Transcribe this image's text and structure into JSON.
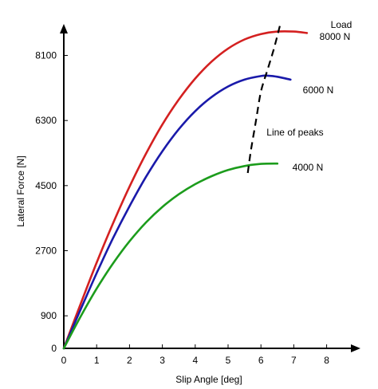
{
  "chart_data": {
    "type": "line",
    "xlabel": "Slip Angle [deg]",
    "ylabel": "Lateral Force [N]",
    "xlim": [
      0,
      8.7
    ],
    "ylim": [
      0,
      8750
    ],
    "xticks": [
      0,
      1,
      2,
      3,
      4,
      5,
      6,
      7,
      8
    ],
    "yticks": [
      0,
      900,
      2700,
      4500,
      6300,
      8100
    ],
    "grid": false,
    "legend_title": "Load",
    "series": [
      {
        "name": "8000 N",
        "color": "#d42020",
        "x": [
          0,
          0.5,
          1,
          1.5,
          2,
          2.5,
          3,
          3.5,
          4,
          4.5,
          5,
          5.5,
          6,
          6.5,
          7,
          7.4
        ],
        "y": [
          0,
          1200,
          2370,
          3460,
          4470,
          5380,
          6190,
          6880,
          7460,
          7930,
          8290,
          8540,
          8690,
          8760,
          8760,
          8720
        ]
      },
      {
        "name": "6000 N",
        "color": "#1a1aaa",
        "x": [
          0,
          0.5,
          1,
          1.5,
          2,
          2.5,
          3,
          3.5,
          4,
          4.5,
          5,
          5.5,
          6,
          6.2,
          6.5,
          6.9
        ],
        "y": [
          0,
          1050,
          2080,
          3050,
          3930,
          4740,
          5450,
          6060,
          6560,
          6950,
          7240,
          7430,
          7530,
          7540,
          7510,
          7430
        ]
      },
      {
        "name": "4000 N",
        "color": "#1c9c1c",
        "x": [
          0,
          0.5,
          1,
          1.5,
          2,
          2.5,
          3,
          3.5,
          4,
          4.5,
          5,
          5.5,
          6,
          6.5
        ],
        "y": [
          0,
          860,
          1650,
          2350,
          2960,
          3480,
          3910,
          4260,
          4540,
          4760,
          4930,
          5040,
          5100,
          5110
        ]
      }
    ],
    "annotations": [
      {
        "text": "Line of peaks",
        "x": [
          5.6,
          5.7,
          5.85,
          6.0,
          6.2,
          6.4,
          6.6
        ],
        "y": [
          4850,
          5500,
          6300,
          7100,
          7700,
          8300,
          9000
        ]
      }
    ]
  }
}
